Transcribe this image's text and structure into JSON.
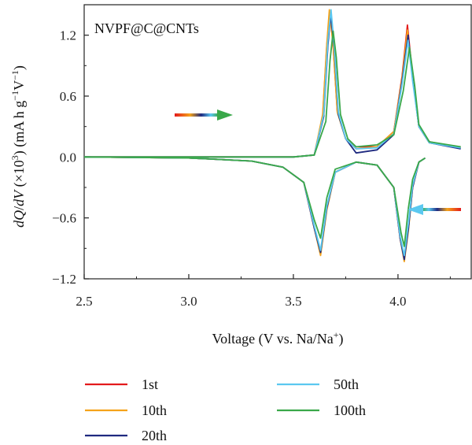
{
  "chart_data": {
    "type": "line",
    "annotation": "NVPF@C@CNTs",
    "xlabel": {
      "prefix": "Voltage (V vs. Na/Na",
      "sup": "+",
      "suffix": ")"
    },
    "ylabel": {
      "num_a": "dQ",
      "slash": "/",
      "den_v": "dV",
      "mid": " (×10",
      "exp": "3",
      "units_a": ") (mA h g",
      "exp2": "−1",
      "units_b": "V",
      "exp3": "−1",
      "close": ")"
    },
    "xlim": [
      2.5,
      4.35
    ],
    "ylim": [
      -1.2,
      1.5
    ],
    "xticks": [
      2.5,
      3.0,
      3.5,
      4.0
    ],
    "xtick_labels": [
      "2.5",
      "3.0",
      "3.5",
      "4.0"
    ],
    "yticks": [
      -1.2,
      -0.6,
      0.0,
      0.6,
      1.2
    ],
    "ytick_labels": [
      "−1.2",
      "−0.6",
      "0.0",
      "0.6",
      "1.2"
    ],
    "legend_position": "bottom",
    "series": [
      {
        "name": "1st",
        "color": "#e31a1c",
        "charge": [
          [
            3.5,
            0.0
          ],
          [
            3.6,
            0.02
          ],
          [
            3.64,
            0.4
          ],
          [
            3.66,
            1.1
          ],
          [
            3.675,
            1.42
          ],
          [
            3.69,
            1.1
          ],
          [
            3.71,
            0.45
          ],
          [
            3.75,
            0.18
          ],
          [
            3.8,
            0.1
          ],
          [
            3.9,
            0.1
          ],
          [
            3.98,
            0.25
          ],
          [
            4.02,
            0.8
          ],
          [
            4.045,
            1.3
          ],
          [
            4.07,
            0.8
          ],
          [
            4.1,
            0.3
          ],
          [
            4.15,
            0.15
          ],
          [
            4.3,
            0.09
          ]
        ],
        "discharge": [
          [
            4.13,
            -0.01
          ],
          [
            4.1,
            -0.05
          ],
          [
            4.07,
            -0.3
          ],
          [
            4.05,
            -0.7
          ],
          [
            4.03,
            -1.0
          ],
          [
            4.01,
            -0.8
          ],
          [
            3.98,
            -0.3
          ],
          [
            3.9,
            -0.08
          ],
          [
            3.8,
            -0.05
          ],
          [
            3.7,
            -0.15
          ],
          [
            3.66,
            -0.5
          ],
          [
            3.63,
            -0.95
          ],
          [
            3.6,
            -0.7
          ],
          [
            3.55,
            -0.25
          ],
          [
            3.45,
            -0.1
          ],
          [
            3.3,
            -0.04
          ],
          [
            3.0,
            -0.01
          ],
          [
            2.5,
            0.0
          ]
        ]
      },
      {
        "name": "10th",
        "color": "#f5a31a",
        "charge": [
          [
            3.5,
            0.0
          ],
          [
            3.6,
            0.02
          ],
          [
            3.64,
            0.42
          ],
          [
            3.66,
            1.12
          ],
          [
            3.672,
            1.45
          ],
          [
            3.69,
            1.1
          ],
          [
            3.71,
            0.44
          ],
          [
            3.75,
            0.18
          ],
          [
            3.8,
            0.08
          ],
          [
            3.9,
            0.1
          ],
          [
            3.98,
            0.25
          ],
          [
            4.02,
            0.78
          ],
          [
            4.045,
            1.25
          ],
          [
            4.07,
            0.78
          ],
          [
            4.1,
            0.3
          ],
          [
            4.15,
            0.14
          ],
          [
            4.3,
            0.09
          ]
        ],
        "discharge": [
          [
            4.13,
            -0.01
          ],
          [
            4.1,
            -0.05
          ],
          [
            4.07,
            -0.3
          ],
          [
            4.05,
            -0.72
          ],
          [
            4.03,
            -1.03
          ],
          [
            4.01,
            -0.8
          ],
          [
            3.98,
            -0.3
          ],
          [
            3.9,
            -0.08
          ],
          [
            3.8,
            -0.05
          ],
          [
            3.7,
            -0.15
          ],
          [
            3.66,
            -0.52
          ],
          [
            3.63,
            -0.97
          ],
          [
            3.6,
            -0.7
          ],
          [
            3.55,
            -0.25
          ],
          [
            3.45,
            -0.1
          ],
          [
            3.3,
            -0.04
          ],
          [
            3.0,
            -0.01
          ],
          [
            2.5,
            0.0
          ]
        ]
      },
      {
        "name": "20th",
        "color": "#1f2a80",
        "charge": [
          [
            3.5,
            0.0
          ],
          [
            3.6,
            0.02
          ],
          [
            3.645,
            0.4
          ],
          [
            3.665,
            1.1
          ],
          [
            3.678,
            1.4
          ],
          [
            3.695,
            1.08
          ],
          [
            3.715,
            0.42
          ],
          [
            3.75,
            0.18
          ],
          [
            3.8,
            0.04
          ],
          [
            3.9,
            0.07
          ],
          [
            3.98,
            0.22
          ],
          [
            4.02,
            0.75
          ],
          [
            4.048,
            1.2
          ],
          [
            4.07,
            0.78
          ],
          [
            4.1,
            0.3
          ],
          [
            4.15,
            0.14
          ],
          [
            4.3,
            0.08
          ]
        ],
        "discharge": [
          [
            4.13,
            -0.01
          ],
          [
            4.1,
            -0.05
          ],
          [
            4.07,
            -0.3
          ],
          [
            4.05,
            -0.7
          ],
          [
            4.03,
            -1.01
          ],
          [
            4.01,
            -0.8
          ],
          [
            3.98,
            -0.3
          ],
          [
            3.9,
            -0.08
          ],
          [
            3.8,
            -0.05
          ],
          [
            3.7,
            -0.15
          ],
          [
            3.66,
            -0.5
          ],
          [
            3.63,
            -0.94
          ],
          [
            3.6,
            -0.7
          ],
          [
            3.55,
            -0.25
          ],
          [
            3.45,
            -0.1
          ],
          [
            3.3,
            -0.04
          ],
          [
            3.0,
            -0.01
          ],
          [
            2.5,
            0.0
          ]
        ]
      },
      {
        "name": "50th",
        "color": "#5bc8f0",
        "charge": [
          [
            3.5,
            0.0
          ],
          [
            3.6,
            0.02
          ],
          [
            3.645,
            0.42
          ],
          [
            3.665,
            1.15
          ],
          [
            3.68,
            1.45
          ],
          [
            3.695,
            1.1
          ],
          [
            3.715,
            0.44
          ],
          [
            3.75,
            0.18
          ],
          [
            3.8,
            0.08
          ],
          [
            3.9,
            0.09
          ],
          [
            3.98,
            0.23
          ],
          [
            4.02,
            0.72
          ],
          [
            4.048,
            1.15
          ],
          [
            4.07,
            0.75
          ],
          [
            4.1,
            0.3
          ],
          [
            4.15,
            0.14
          ],
          [
            4.3,
            0.09
          ]
        ],
        "discharge": [
          [
            4.13,
            -0.01
          ],
          [
            4.1,
            -0.05
          ],
          [
            4.07,
            -0.28
          ],
          [
            4.05,
            -0.65
          ],
          [
            4.03,
            -0.97
          ],
          [
            4.01,
            -0.78
          ],
          [
            3.98,
            -0.3
          ],
          [
            3.9,
            -0.08
          ],
          [
            3.8,
            -0.05
          ],
          [
            3.7,
            -0.15
          ],
          [
            3.66,
            -0.48
          ],
          [
            3.63,
            -0.92
          ],
          [
            3.6,
            -0.68
          ],
          [
            3.55,
            -0.25
          ],
          [
            3.45,
            -0.1
          ],
          [
            3.3,
            -0.04
          ],
          [
            3.0,
            -0.01
          ],
          [
            2.5,
            0.0
          ]
        ]
      },
      {
        "name": "100th",
        "color": "#3aa84a",
        "charge": [
          [
            3.5,
            0.0
          ],
          [
            3.6,
            0.02
          ],
          [
            3.655,
            0.35
          ],
          [
            3.675,
            0.95
          ],
          [
            3.69,
            1.24
          ],
          [
            3.705,
            0.98
          ],
          [
            3.725,
            0.42
          ],
          [
            3.76,
            0.18
          ],
          [
            3.8,
            0.1
          ],
          [
            3.9,
            0.12
          ],
          [
            3.98,
            0.22
          ],
          [
            4.025,
            0.65
          ],
          [
            4.055,
            1.08
          ],
          [
            4.08,
            0.7
          ],
          [
            4.1,
            0.32
          ],
          [
            4.15,
            0.15
          ],
          [
            4.3,
            0.1
          ]
        ],
        "discharge": [
          [
            4.13,
            -0.01
          ],
          [
            4.1,
            -0.05
          ],
          [
            4.07,
            -0.22
          ],
          [
            4.05,
            -0.5
          ],
          [
            4.03,
            -0.88
          ],
          [
            4.015,
            -0.75
          ],
          [
            3.98,
            -0.3
          ],
          [
            3.9,
            -0.08
          ],
          [
            3.8,
            -0.05
          ],
          [
            3.7,
            -0.12
          ],
          [
            3.66,
            -0.4
          ],
          [
            3.63,
            -0.8
          ],
          [
            3.6,
            -0.62
          ],
          [
            3.55,
            -0.25
          ],
          [
            3.45,
            -0.1
          ],
          [
            3.3,
            -0.04
          ],
          [
            3.0,
            -0.01
          ],
          [
            2.5,
            0.0
          ]
        ]
      }
    ],
    "legend_order": [
      0,
      3,
      1,
      4,
      2
    ]
  }
}
